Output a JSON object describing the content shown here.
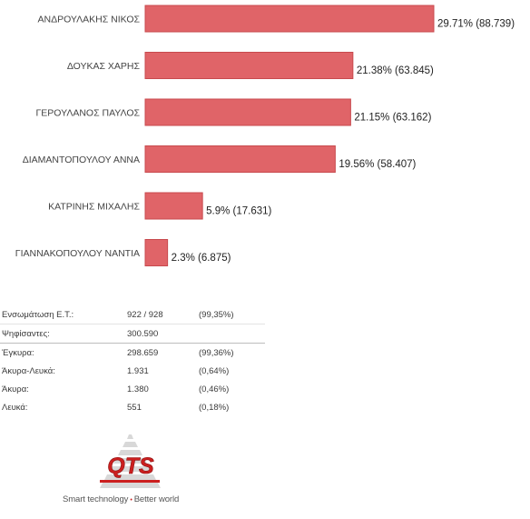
{
  "chart_data": {
    "type": "bar",
    "orientation": "horizontal",
    "categories": [
      "ΑΝΔΡΟΥΛΑΚΗΣ ΝΙΚΟΣ",
      "ΔΟΥΚΑΣ ΧΑΡΗΣ",
      "ΓΕΡΟΥΛΑΝΟΣ ΠΑΥΛΟΣ",
      "ΔΙΑΜΑΝΤΟΠΟΥΛΟΥ ΑΝΝΑ",
      "ΚΑΤΡΙΝΗΣ ΜΙΧΑΛΗΣ",
      "ΓΙΑΝΝΑΚΟΠΟΥΛΟΥ ΝΑΝΤΙΑ"
    ],
    "values": [
      29.71,
      21.38,
      21.15,
      19.56,
      5.9,
      2.3
    ],
    "data_labels": [
      "29.71% (88.739)",
      "21.38% (63.845)",
      "21.15% (63.162)",
      "19.56% (58.407)",
      "5.9% (17.631)",
      "2.3% (6.875)"
    ],
    "title": "",
    "xlabel": "",
    "ylabel": "",
    "xlim": [
      0,
      29.71
    ],
    "grid": false,
    "legend": "none",
    "colors": {
      "bar": "#e06468",
      "bar_border": "#c84a4e"
    }
  },
  "stats": {
    "rows": [
      {
        "label": "Ενσωμάτωση Ε.Τ.:",
        "value": "922 / 928",
        "pct": "(99,35%)"
      },
      {
        "label": "Ψηφίσαντες:",
        "value": "300.590",
        "pct": ""
      },
      {
        "label": "Έγκυρα:",
        "value": "298.659",
        "pct": "(99,36%)"
      },
      {
        "label": "Άκυρα-Λευκά:",
        "value": "1.931",
        "pct": "(0,64%)"
      },
      {
        "label": "Άκυρα:",
        "value": "1.380",
        "pct": "(0,46%)"
      },
      {
        "label": "Λευκά:",
        "value": "551",
        "pct": "(0,18%)"
      }
    ]
  },
  "logo": {
    "text": "QTS",
    "tagline_left": "Smart technology",
    "tagline_sep": "•",
    "tagline_right": "Better world",
    "colors": {
      "primary": "#cc1f1f",
      "pyramid": "#d8d8d8"
    }
  }
}
